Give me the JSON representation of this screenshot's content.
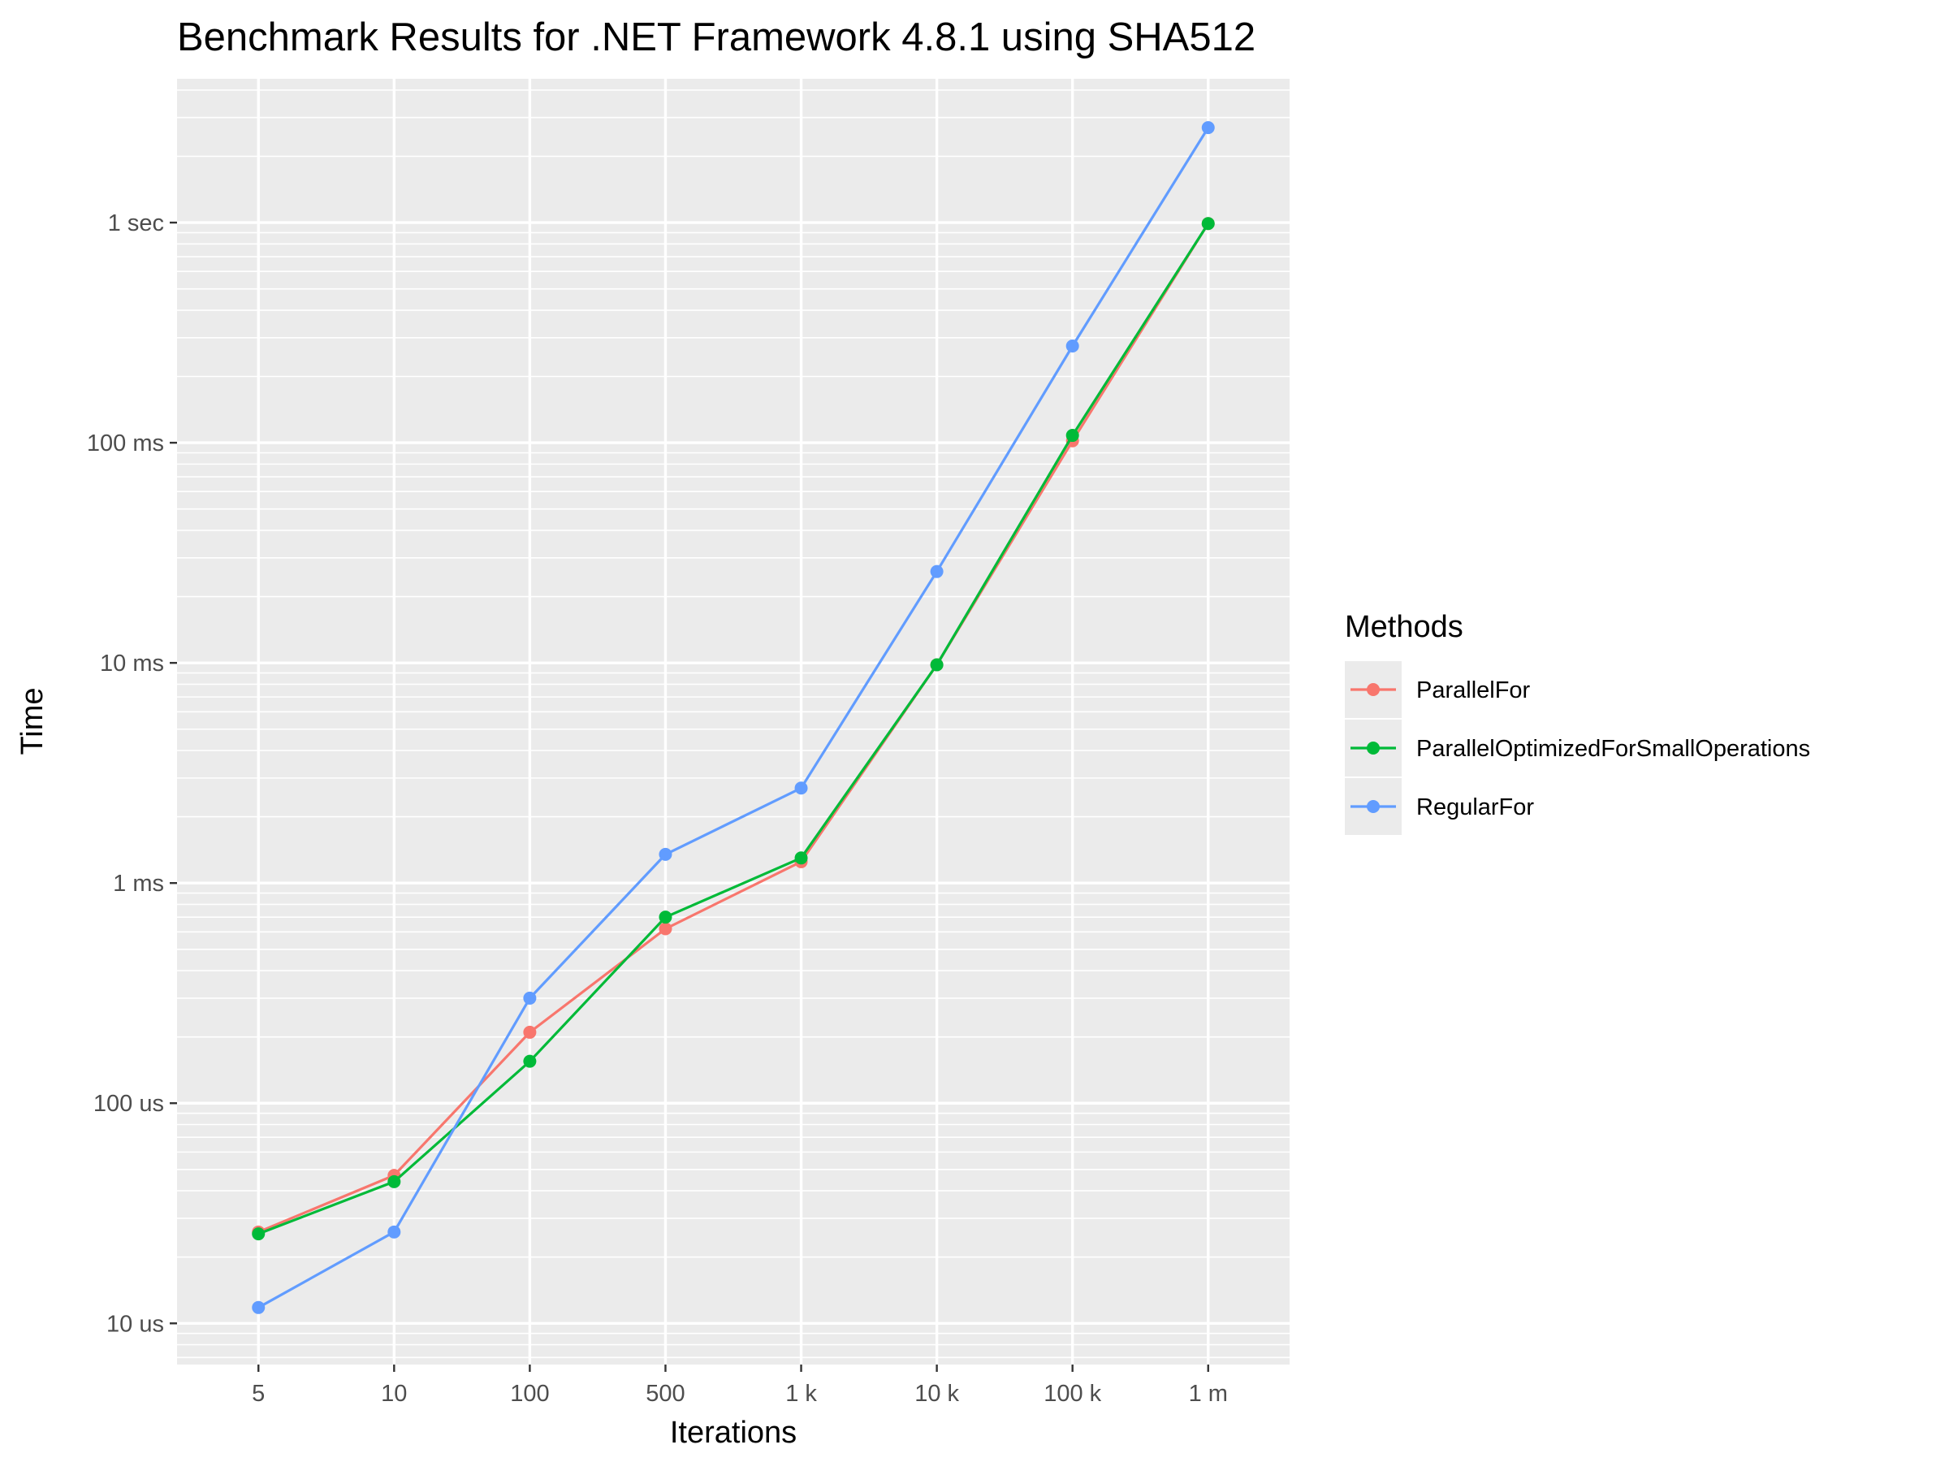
{
  "chart_data": {
    "type": "line",
    "title": "Benchmark Results for  .NET Framework 4.8.1  using SHA512",
    "xlabel": "Iterations",
    "ylabel": "Time",
    "x_scale": "categorical",
    "y_scale": "log10",
    "y_unit": "ms",
    "categories": [
      "5",
      "10",
      "100",
      "500",
      "1 k",
      "10 k",
      "100 k",
      "1 m"
    ],
    "y_ticks": [
      {
        "value": 0.01,
        "label": "10 us"
      },
      {
        "value": 0.1,
        "label": "100 us"
      },
      {
        "value": 1,
        "label": "1 ms"
      },
      {
        "value": 10,
        "label": "10 ms"
      },
      {
        "value": 100,
        "label": "100 ms"
      },
      {
        "value": 1000,
        "label": "1 sec"
      }
    ],
    "ylim": [
      0.0065,
      4500
    ],
    "grid": true,
    "legend": {
      "title": "Methods",
      "position": "right"
    },
    "series": [
      {
        "name": "ParallelFor",
        "color": "#F8766D",
        "values": [
          0.026,
          0.047,
          0.21,
          0.62,
          1.25,
          9.8,
          102,
          990
        ]
      },
      {
        "name": "ParallelOptimizedForSmallOperations",
        "color": "#00BA38",
        "values": [
          0.0255,
          0.044,
          0.155,
          0.7,
          1.3,
          9.8,
          108,
          990
        ]
      },
      {
        "name": "RegularFor",
        "color": "#619CFF",
        "values": [
          0.0118,
          0.026,
          0.3,
          1.35,
          2.7,
          26,
          275,
          2700
        ]
      }
    ]
  }
}
